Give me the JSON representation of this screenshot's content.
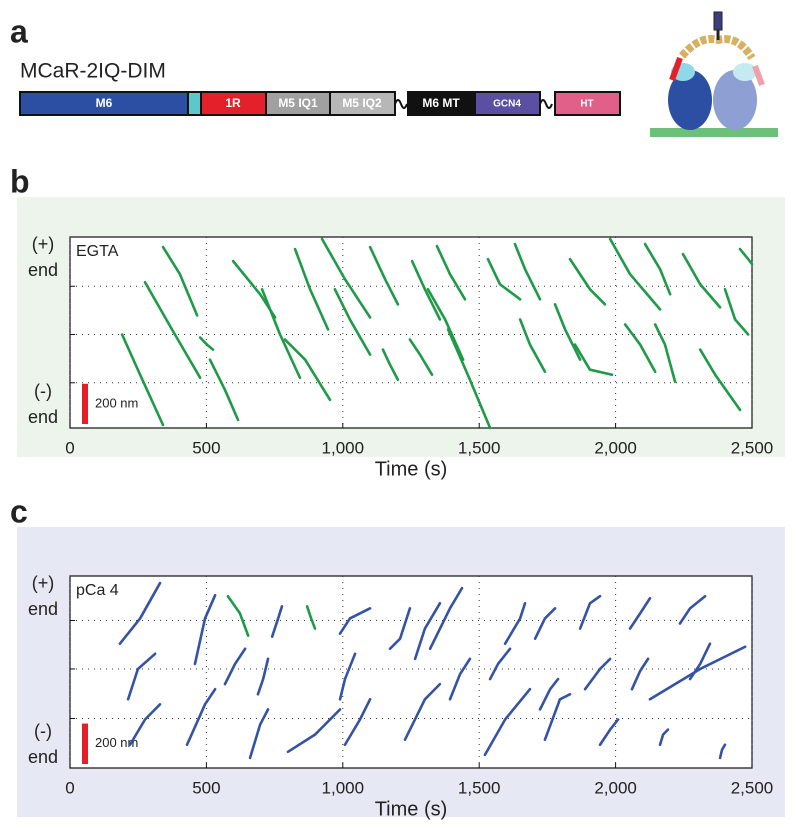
{
  "panel_labels": [
    "a",
    "b",
    "c"
  ],
  "construct": {
    "title": "MCaR-2IQ-DIM",
    "domains": [
      "M6",
      "1R",
      "M5 IQ1",
      "M5 IQ2",
      "M6 MT",
      "GCN4",
      "HT"
    ]
  },
  "chart_data": [
    {
      "type": "line",
      "label": "EGTA",
      "background": "#edf4ec",
      "end_labels": {
        "plus": [
          "(+)",
          "end"
        ],
        "minus": [
          "(-)",
          "end"
        ]
      },
      "xlabel": "Time (s)",
      "xlim": [
        0,
        2500
      ],
      "xticks": [
        0,
        500,
        {
          "value": 1000,
          "label": "1,000"
        },
        {
          "value": 1500,
          "label": "1,500"
        },
        {
          "value": 2000,
          "label": "2,000"
        },
        {
          "value": 2500,
          "label": "2,500"
        }
      ],
      "ylim": [
        0,
        950
      ],
      "grid_y": [
        225,
        465,
        705
      ],
      "grid": true,
      "scale_bar": {
        "value": 200,
        "label": "200 nm",
        "color": "#e3202a"
      },
      "series": [
        {
          "color": "#1f9a48",
          "x": [
            191,
            257,
            341
          ],
          "values": [
            465,
            265,
            15
          ]
        },
        {
          "color": "#1f9a48",
          "x": [
            275,
            374,
            477
          ],
          "values": [
            725,
            490,
            250
          ]
        },
        {
          "color": "#1f9a48",
          "x": [
            341,
            403,
            466
          ],
          "values": [
            900,
            765,
            560
          ]
        },
        {
          "color": "#1f9a48",
          "x": [
            477,
            502,
            524
          ],
          "values": [
            450,
            415,
            390
          ]
        },
        {
          "color": "#1f9a48",
          "x": [
            513,
            568,
            616
          ],
          "values": [
            340,
            190,
            40
          ]
        },
        {
          "color": "#1f9a48",
          "x": [
            598,
            697,
            752
          ],
          "values": [
            830,
            665,
            550
          ]
        },
        {
          "color": "#1f9a48",
          "x": [
            704,
            770,
            843
          ],
          "values": [
            690,
            465,
            250
          ]
        },
        {
          "color": "#1f9a48",
          "x": [
            788,
            862,
            953
          ],
          "values": [
            440,
            340,
            140
          ]
        },
        {
          "color": "#1f9a48",
          "x": [
            825,
            880,
            946
          ],
          "values": [
            890,
            690,
            490
          ]
        },
        {
          "color": "#1f9a48",
          "x": [
            924,
            1008,
            1100
          ],
          "values": [
            940,
            740,
            550
          ]
        },
        {
          "color": "#1f9a48",
          "x": [
            971,
            1026,
            1100
          ],
          "values": [
            690,
            540,
            365
          ]
        },
        {
          "color": "#1f9a48",
          "x": [
            1100,
            1155,
            1202
          ],
          "values": [
            900,
            740,
            615
          ]
        },
        {
          "color": "#1f9a48",
          "x": [
            1147,
            1173,
            1202
          ],
          "values": [
            390,
            315,
            240
          ]
        },
        {
          "color": "#1f9a48",
          "x": [
            1254,
            1301,
            1356
          ],
          "values": [
            830,
            690,
            540
          ]
        },
        {
          "color": "#1f9a48",
          "x": [
            1246,
            1283,
            1327
          ],
          "values": [
            440,
            365,
            265
          ]
        },
        {
          "color": "#1f9a48",
          "x": [
            1345,
            1393,
            1448
          ],
          "values": [
            905,
            765,
            640
          ]
        },
        {
          "color": "#1f9a48",
          "x": [
            1312,
            1375,
            1441
          ],
          "values": [
            690,
            540,
            340
          ]
        },
        {
          "color": "#1f9a48",
          "x": [
            1386,
            1466,
            1540
          ],
          "values": [
            490,
            240,
            0
          ]
        },
        {
          "color": "#1f9a48",
          "x": [
            1532,
            1576,
            1650
          ],
          "values": [
            840,
            715,
            640
          ]
        },
        {
          "color": "#1f9a48",
          "x": [
            1631,
            1668,
            1723
          ],
          "values": [
            915,
            790,
            640
          ]
        },
        {
          "color": "#1f9a48",
          "x": [
            1650,
            1686,
            1741
          ],
          "values": [
            540,
            415,
            280
          ]
        },
        {
          "color": "#1f9a48",
          "x": [
            1778,
            1815,
            1870
          ],
          "values": [
            615,
            490,
            340
          ]
        },
        {
          "color": "#1f9a48",
          "x": [
            1833,
            1906,
            1961
          ],
          "values": [
            840,
            690,
            615
          ]
        },
        {
          "color": "#1f9a48",
          "x": [
            1851,
            1906,
            1987
          ],
          "values": [
            415,
            290,
            265
          ]
        },
        {
          "color": "#1f9a48",
          "x": [
            1980,
            2053,
            2163
          ],
          "values": [
            940,
            765,
            590
          ]
        },
        {
          "color": "#1f9a48",
          "x": [
            2035,
            2090,
            2145
          ],
          "values": [
            515,
            415,
            280
          ]
        },
        {
          "color": "#1f9a48",
          "x": [
            2108,
            2163,
            2200
          ],
          "values": [
            915,
            790,
            665
          ]
        },
        {
          "color": "#1f9a48",
          "x": [
            2145,
            2181,
            2218
          ],
          "values": [
            515,
            415,
            230
          ]
        },
        {
          "color": "#1f9a48",
          "x": [
            2247,
            2310,
            2383
          ],
          "values": [
            865,
            715,
            600
          ]
        },
        {
          "color": "#1f9a48",
          "x": [
            2310,
            2365,
            2456
          ],
          "values": [
            390,
            265,
            90
          ]
        },
        {
          "color": "#1f9a48",
          "x": [
            2401,
            2438,
            2486
          ],
          "values": [
            690,
            540,
            465
          ]
        },
        {
          "color": "#1f9a48",
          "x": [
            2456,
            2486,
            2500
          ],
          "values": [
            890,
            840,
            815
          ]
        }
      ]
    },
    {
      "type": "line",
      "label": "pCa 4",
      "background": "#e6e8f3",
      "end_labels": {
        "plus": [
          "(+)",
          "end"
        ],
        "minus": [
          "(-)",
          "end"
        ]
      },
      "xlabel": "Time (s)",
      "xlim": [
        0,
        2500
      ],
      "xticks": [
        0,
        500,
        {
          "value": 1000,
          "label": "1,000"
        },
        {
          "value": 1500,
          "label": "1,500"
        },
        {
          "value": 2000,
          "label": "2,000"
        },
        {
          "value": 2500,
          "label": "2,500"
        }
      ],
      "ylim": [
        0,
        950
      ],
      "grid_y": [
        245,
        490,
        730
      ],
      "grid": true,
      "scale_bar": {
        "value": 200,
        "label": "200 nm",
        "color": "#e3202a"
      },
      "series": [
        {
          "color": "#3553a5",
          "x": [
            183,
            257,
            330
          ],
          "values": [
            615,
            740,
            915
          ]
        },
        {
          "color": "#3553a5",
          "x": [
            213,
            249,
            312
          ],
          "values": [
            340,
            490,
            565
          ]
        },
        {
          "color": "#3553a5",
          "x": [
            220,
            275,
            330
          ],
          "values": [
            115,
            240,
            315
          ]
        },
        {
          "color": "#3553a5",
          "x": [
            429,
            495,
            532
          ],
          "values": [
            115,
            315,
            390
          ]
        },
        {
          "color": "#3553a5",
          "x": [
            458,
            495,
            532
          ],
          "values": [
            515,
            740,
            855
          ]
        },
        {
          "color": "#1f9a48",
          "x": [
            579,
            623,
            653
          ],
          "values": [
            850,
            765,
            655
          ]
        },
        {
          "color": "#3553a5",
          "x": [
            568,
            605,
            642
          ],
          "values": [
            415,
            515,
            590
          ]
        },
        {
          "color": "#3553a5",
          "x": [
            660,
            697,
            726
          ],
          "values": [
            50,
            215,
            290
          ]
        },
        {
          "color": "#3553a5",
          "x": [
            689,
            708,
            726
          ],
          "values": [
            365,
            440,
            540
          ]
        },
        {
          "color": "#3553a5",
          "x": [
            741,
            763,
            777
          ],
          "values": [
            650,
            740,
            800
          ]
        },
        {
          "color": "#3553a5",
          "x": [
            799,
            898,
            990
          ],
          "values": [
            80,
            165,
            290
          ]
        },
        {
          "color": "#1f9a48",
          "x": [
            869,
            884,
            898
          ],
          "values": [
            800,
            740,
            690
          ]
        },
        {
          "color": "#3553a5",
          "x": [
            990,
            1026,
            1100
          ],
          "values": [
            665,
            740,
            790
          ]
        },
        {
          "color": "#3553a5",
          "x": [
            990,
            1008,
            1045
          ],
          "values": [
            340,
            440,
            565
          ]
        },
        {
          "color": "#3553a5",
          "x": [
            1008,
            1063,
            1100
          ],
          "values": [
            115,
            240,
            340
          ]
        },
        {
          "color": "#3553a5",
          "x": [
            1173,
            1210,
            1246
          ],
          "values": [
            590,
            640,
            790
          ]
        },
        {
          "color": "#3553a5",
          "x": [
            1228,
            1301,
            1356
          ],
          "values": [
            140,
            340,
            415
          ]
        },
        {
          "color": "#3553a5",
          "x": [
            1265,
            1301,
            1356
          ],
          "values": [
            540,
            690,
            815
          ]
        },
        {
          "color": "#3553a5",
          "x": [
            1320,
            1393,
            1437
          ],
          "values": [
            590,
            790,
            890
          ]
        },
        {
          "color": "#3553a5",
          "x": [
            1393,
            1430,
            1466
          ],
          "values": [
            340,
            465,
            540
          ]
        },
        {
          "color": "#3553a5",
          "x": [
            1521,
            1595,
            1686
          ],
          "values": [
            65,
            240,
            390
          ]
        },
        {
          "color": "#3553a5",
          "x": [
            1540,
            1569,
            1613
          ],
          "values": [
            440,
            515,
            590
          ]
        },
        {
          "color": "#3553a5",
          "x": [
            1595,
            1650,
            1668
          ],
          "values": [
            615,
            740,
            815
          ]
        },
        {
          "color": "#3553a5",
          "x": [
            1705,
            1741,
            1778
          ],
          "values": [
            640,
            740,
            790
          ]
        },
        {
          "color": "#3553a5",
          "x": [
            1723,
            1760,
            1789
          ],
          "values": [
            290,
            390,
            440
          ]
        },
        {
          "color": "#3553a5",
          "x": [
            1741,
            1796,
            1833
          ],
          "values": [
            140,
            340,
            365
          ]
        },
        {
          "color": "#3553a5",
          "x": [
            1870,
            1906,
            1943
          ],
          "values": [
            690,
            815,
            850
          ]
        },
        {
          "color": "#3553a5",
          "x": [
            1888,
            1943,
            1980
          ],
          "values": [
            390,
            490,
            540
          ]
        },
        {
          "color": "#3553a5",
          "x": [
            1943,
            1980,
            2009
          ],
          "values": [
            115,
            190,
            240
          ]
        },
        {
          "color": "#3553a5",
          "x": [
            2053,
            2090,
            2126
          ],
          "values": [
            690,
            765,
            840
          ]
        },
        {
          "color": "#3553a5",
          "x": [
            2060,
            2090,
            2119
          ],
          "values": [
            390,
            480,
            540
          ]
        },
        {
          "color": "#3553a5",
          "x": [
            2126,
            2310,
            2475
          ],
          "values": [
            340,
            490,
            600
          ]
        },
        {
          "color": "#3553a5",
          "x": [
            2163,
            2174,
            2192
          ],
          "values": [
            115,
            165,
            190
          ]
        },
        {
          "color": "#3553a5",
          "x": [
            2236,
            2273,
            2328
          ],
          "values": [
            715,
            790,
            850
          ]
        },
        {
          "color": "#3553a5",
          "x": [
            2273,
            2310,
            2346
          ],
          "values": [
            440,
            515,
            615
          ]
        },
        {
          "color": "#3553a5",
          "x": [
            2383,
            2390,
            2401
          ],
          "values": [
            50,
            90,
            115
          ]
        }
      ]
    }
  ]
}
